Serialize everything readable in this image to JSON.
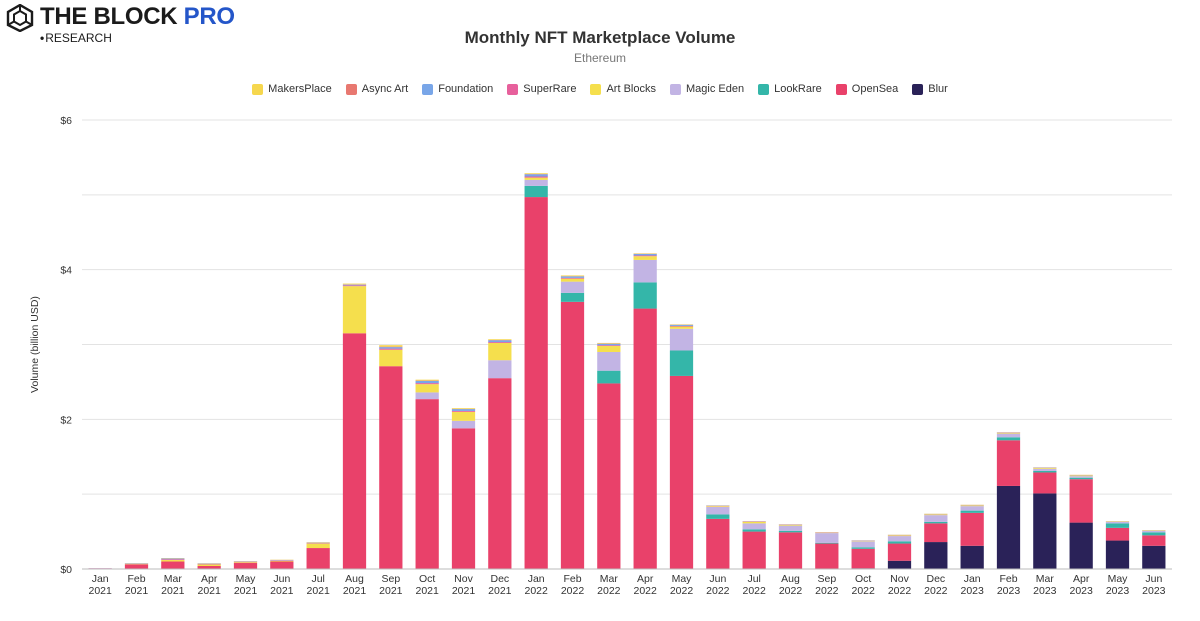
{
  "brand": {
    "name_main": "THE BLOCK",
    "name_pro": "PRO",
    "sub": "RESEARCH"
  },
  "colors": {
    "Blur": "#2a2258",
    "OpenSea": "#e9416a",
    "LookRare": "#34b6a9",
    "Magic Eden": "#c2b4e4",
    "Art Blocks": "#f5df4d",
    "SuperRare": "#e7609c",
    "Foundation": "#79a6e8",
    "Async Art": "#e87870",
    "MakersPlace": "#f6d74e"
  },
  "chart_data": {
    "type": "bar",
    "stacked": true,
    "title": "Monthly NFT Marketplace Volume",
    "subtitle": "Ethereum",
    "xlabel": "",
    "ylabel": "Volume (billion USD)",
    "ylim": [
      0,
      6
    ],
    "yticks": [
      0,
      2,
      4,
      6
    ],
    "ytick_labels": [
      "$0",
      "$2",
      "$4",
      "$6"
    ],
    "grid": true,
    "legend_position": "top-center",
    "legend": [
      "MakersPlace",
      "Async Art",
      "Foundation",
      "SuperRare",
      "Art Blocks",
      "Magic Eden",
      "LookRare",
      "OpenSea",
      "Blur"
    ],
    "categories": [
      [
        "Jan",
        "2021"
      ],
      [
        "Feb",
        "2021"
      ],
      [
        "Mar",
        "2021"
      ],
      [
        "Apr",
        "2021"
      ],
      [
        "May",
        "2021"
      ],
      [
        "Jun",
        "2021"
      ],
      [
        "Jul",
        "2021"
      ],
      [
        "Aug",
        "2021"
      ],
      [
        "Sep",
        "2021"
      ],
      [
        "Oct",
        "2021"
      ],
      [
        "Nov",
        "2021"
      ],
      [
        "Dec",
        "2021"
      ],
      [
        "Jan",
        "2022"
      ],
      [
        "Feb",
        "2022"
      ],
      [
        "Mar",
        "2022"
      ],
      [
        "Apr",
        "2022"
      ],
      [
        "May",
        "2022"
      ],
      [
        "Jun",
        "2022"
      ],
      [
        "Jul",
        "2022"
      ],
      [
        "Aug",
        "2022"
      ],
      [
        "Sep",
        "2022"
      ],
      [
        "Oct",
        "2022"
      ],
      [
        "Nov",
        "2022"
      ],
      [
        "Dec",
        "2022"
      ],
      [
        "Jan",
        "2023"
      ],
      [
        "Feb",
        "2023"
      ],
      [
        "Mar",
        "2023"
      ],
      [
        "Apr",
        "2023"
      ],
      [
        "May",
        "2023"
      ],
      [
        "Jun",
        "2023"
      ]
    ],
    "series": [
      {
        "name": "Blur",
        "values": [
          0,
          0,
          0,
          0,
          0,
          0,
          0,
          0,
          0,
          0,
          0,
          0,
          0,
          0,
          0,
          0,
          0,
          0,
          0,
          0,
          0,
          0.01,
          0.11,
          0.36,
          0.31,
          1.11,
          1.01,
          0.62,
          0.38,
          0.31
        ]
      },
      {
        "name": "OpenSea",
        "values": [
          0.008,
          0.06,
          0.1,
          0.04,
          0.08,
          0.1,
          0.28,
          3.15,
          2.71,
          2.27,
          1.88,
          2.55,
          4.97,
          3.57,
          2.48,
          3.48,
          2.58,
          0.67,
          0.5,
          0.49,
          0.34,
          0.26,
          0.23,
          0.25,
          0.44,
          0.61,
          0.28,
          0.58,
          0.17,
          0.14
        ]
      },
      {
        "name": "LookRare",
        "values": [
          0,
          0,
          0,
          0,
          0,
          0,
          0,
          0,
          0,
          0,
          0,
          0,
          0.15,
          0.12,
          0.17,
          0.35,
          0.34,
          0.06,
          0.03,
          0.02,
          0.01,
          0.02,
          0.03,
          0.02,
          0.03,
          0.04,
          0.02,
          0.02,
          0.06,
          0.04
        ]
      },
      {
        "name": "Magic Eden",
        "values": [
          0,
          0,
          0,
          0,
          0,
          0,
          0,
          0,
          0,
          0.09,
          0.1,
          0.24,
          0.08,
          0.15,
          0.25,
          0.3,
          0.29,
          0.1,
          0.08,
          0.07,
          0.13,
          0.08,
          0.07,
          0.09,
          0.06,
          0.05,
          0.03,
          0.02,
          0.02,
          0.02
        ]
      },
      {
        "name": "Art Blocks",
        "values": [
          0,
          0.005,
          0.02,
          0.02,
          0.01,
          0.01,
          0.06,
          0.63,
          0.22,
          0.11,
          0.12,
          0.23,
          0.03,
          0.04,
          0.08,
          0.05,
          0.03,
          0.01,
          0.02,
          0.01,
          0.005,
          0.005,
          0.01,
          0.01,
          0.01,
          0.01,
          0.01,
          0.01,
          0.005,
          0.005
        ]
      },
      {
        "name": "SuperRare",
        "values": [
          0.002,
          0.004,
          0.01,
          0.006,
          0.007,
          0.006,
          0.006,
          0.01,
          0.015,
          0.014,
          0.012,
          0.012,
          0.015,
          0.01,
          0.01,
          0.01,
          0.008,
          0.004,
          0.004,
          0.003,
          0.003,
          0.003,
          0.003,
          0.003,
          0.003,
          0.003,
          0.003,
          0.003,
          0.002,
          0.002
        ]
      },
      {
        "name": "Foundation",
        "values": [
          0.001,
          0.005,
          0.01,
          0.006,
          0.005,
          0.005,
          0.006,
          0.01,
          0.02,
          0.03,
          0.025,
          0.025,
          0.03,
          0.02,
          0.02,
          0.02,
          0.015,
          0.004,
          0.004,
          0.003,
          0.003,
          0.003,
          0.003,
          0.003,
          0.003,
          0.003,
          0.003,
          0.003,
          0.002,
          0.002
        ]
      },
      {
        "name": "Async Art",
        "values": [
          0,
          0.002,
          0.003,
          0.002,
          0.002,
          0.001,
          0.002,
          0.004,
          0.006,
          0.004,
          0.003,
          0.004,
          0.004,
          0.003,
          0.003,
          0.003,
          0.002,
          0.001,
          0.001,
          0.001,
          0.001,
          0.001,
          0.001,
          0.001,
          0.001,
          0.001,
          0.001,
          0.001,
          0.001,
          0.001
        ]
      },
      {
        "name": "MakersPlace",
        "values": [
          0,
          0.003,
          0.004,
          0.003,
          0.003,
          0.003,
          0.004,
          0.01,
          0.02,
          0.012,
          0.01,
          0.01,
          0.01,
          0.01,
          0.008,
          0.006,
          0.005,
          0.002,
          0.002,
          0.002,
          0.002,
          0.002,
          0.002,
          0.002,
          0.002,
          0.002,
          0.002,
          0.002,
          0.001,
          0.001
        ]
      }
    ]
  }
}
